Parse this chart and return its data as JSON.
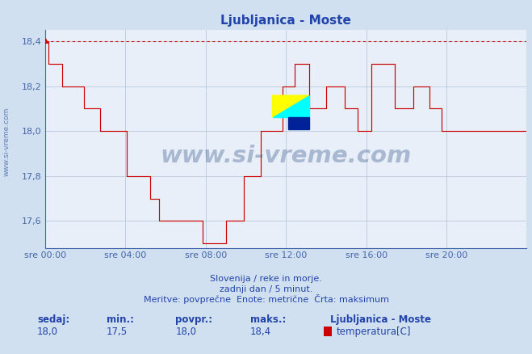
{
  "title": "Ljubljanica - Moste",
  "bg_color": "#d0e0f0",
  "plot_bg_color": "#e8eff8",
  "line_color": "#cc0000",
  "dashed_line_color": "#cc0000",
  "grid_color": "#b8c8dc",
  "axis_color": "#4466aa",
  "text_color": "#2244aa",
  "ylim_min": 17.48,
  "ylim_max": 18.45,
  "yticks": [
    17.6,
    17.8,
    18.0,
    18.2,
    18.4
  ],
  "xlim_min": 0,
  "xlim_max": 288,
  "xtick_positions": [
    0,
    48,
    96,
    144,
    192,
    240
  ],
  "xtick_labels": [
    "sre 00:00",
    "sre 04:00",
    "sre 08:00",
    "sre 12:00",
    "sre 16:00",
    "sre 20:00"
  ],
  "max_value": 18.4,
  "footer_line1": "Slovenija / reke in morje.",
  "footer_line2": "zadnji dan / 5 minut.",
  "footer_line3": "Meritve: povprečne  Enote: metrične  Črta: maksimum",
  "stat_labels": [
    "sedaj:",
    "min.:",
    "povpr.:",
    "maks.:"
  ],
  "stat_values": [
    "18,0",
    "17,5",
    "18,0",
    "18,4"
  ],
  "legend_title": "Ljubljanica - Moste",
  "legend_label": "temperatura[C]",
  "legend_color": "#cc0000",
  "watermark_text": "www.si-vreme.com",
  "watermark_color": "#1a3a7a",
  "watermark_alpha": 0.3,
  "left_label": "www.si-vreme.com",
  "data_y": [
    18.4,
    18.4,
    18.3,
    18.3,
    18.3,
    18.3,
    18.3,
    18.3,
    18.3,
    18.3,
    18.2,
    18.2,
    18.2,
    18.2,
    18.2,
    18.2,
    18.2,
    18.2,
    18.2,
    18.2,
    18.2,
    18.2,
    18.2,
    18.1,
    18.1,
    18.1,
    18.1,
    18.1,
    18.1,
    18.1,
    18.1,
    18.1,
    18.1,
    18.0,
    18.0,
    18.0,
    18.0,
    18.0,
    18.0,
    18.0,
    18.0,
    18.0,
    18.0,
    18.0,
    18.0,
    18.0,
    18.0,
    18.0,
    18.0,
    17.8,
    17.8,
    17.8,
    17.8,
    17.8,
    17.8,
    17.8,
    17.8,
    17.8,
    17.8,
    17.8,
    17.8,
    17.8,
    17.8,
    17.7,
    17.7,
    17.7,
    17.7,
    17.7,
    17.6,
    17.6,
    17.6,
    17.6,
    17.6,
    17.6,
    17.6,
    17.6,
    17.6,
    17.6,
    17.6,
    17.6,
    17.6,
    17.6,
    17.6,
    17.6,
    17.6,
    17.6,
    17.6,
    17.6,
    17.6,
    17.6,
    17.6,
    17.6,
    17.6,
    17.6,
    17.5,
    17.5,
    17.5,
    17.5,
    17.5,
    17.5,
    17.5,
    17.5,
    17.5,
    17.5,
    17.5,
    17.5,
    17.5,
    17.5,
    17.6,
    17.6,
    17.6,
    17.6,
    17.6,
    17.6,
    17.6,
    17.6,
    17.6,
    17.6,
    17.6,
    17.8,
    17.8,
    17.8,
    17.8,
    17.8,
    17.8,
    17.8,
    17.8,
    17.8,
    17.8,
    18.0,
    18.0,
    18.0,
    18.0,
    18.0,
    18.0,
    18.0,
    18.0,
    18.0,
    18.0,
    18.0,
    18.0,
    18.0,
    18.2,
    18.2,
    18.2,
    18.2,
    18.2,
    18.2,
    18.2,
    18.3,
    18.3,
    18.3,
    18.3,
    18.3,
    18.3,
    18.3,
    18.3,
    18.3,
    18.1,
    18.1,
    18.1,
    18.1,
    18.1,
    18.1,
    18.1,
    18.1,
    18.1,
    18.1,
    18.2,
    18.2,
    18.2,
    18.2,
    18.2,
    18.2,
    18.2,
    18.2,
    18.2,
    18.2,
    18.2,
    18.1,
    18.1,
    18.1,
    18.1,
    18.1,
    18.1,
    18.1,
    18.1,
    18.0,
    18.0,
    18.0,
    18.0,
    18.0,
    18.0,
    18.0,
    18.0,
    18.3,
    18.3,
    18.3,
    18.3,
    18.3,
    18.3,
    18.3,
    18.3,
    18.3,
    18.3,
    18.3,
    18.3,
    18.3,
    18.3,
    18.1,
    18.1,
    18.1,
    18.1,
    18.1,
    18.1,
    18.1,
    18.1,
    18.1,
    18.1,
    18.1,
    18.2,
    18.2,
    18.2,
    18.2,
    18.2,
    18.2,
    18.2,
    18.2,
    18.2,
    18.2,
    18.1,
    18.1,
    18.1,
    18.1,
    18.1,
    18.1,
    18.1,
    18.0,
    18.0,
    18.0,
    18.0,
    18.0,
    18.0,
    18.0,
    18.0,
    18.0,
    18.0,
    18.0,
    18.0,
    18.0,
    18.0,
    18.0,
    18.0,
    18.0,
    18.0,
    18.0,
    18.0,
    18.0,
    18.0,
    18.0,
    18.0,
    18.0,
    18.0,
    18.0,
    18.0,
    18.0,
    18.0,
    18.0,
    18.0,
    18.0,
    18.0,
    18.0,
    18.0,
    18.0,
    18.0,
    18.0,
    18.0,
    18.0,
    18.0,
    18.0,
    18.0,
    18.0,
    18.0,
    18.0,
    18.0,
    18.0,
    18.0,
    18.0,
    18.0,
    18.0
  ]
}
